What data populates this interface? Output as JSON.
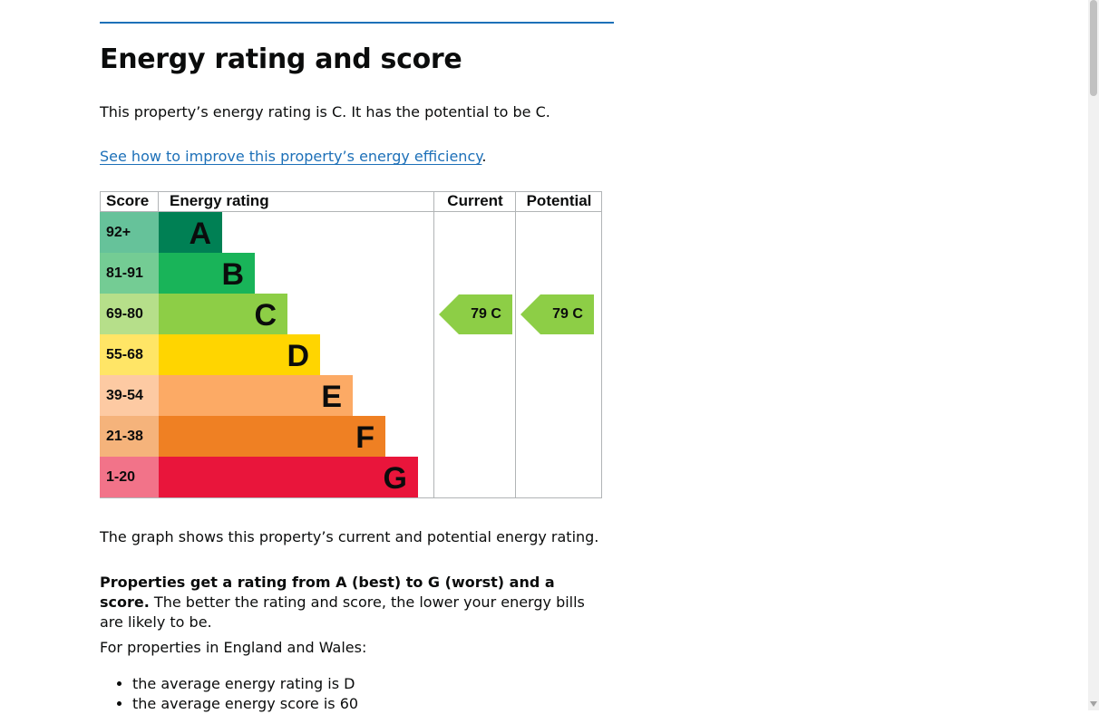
{
  "title": "Energy rating and score",
  "intro": "This property’s energy rating is C. It has the potential to be C.",
  "improve_link": "See how to improve this property’s energy efficiency",
  "improve_link_suffix": ".",
  "chart_data": {
    "type": "table",
    "headers": {
      "score": "Score",
      "rating": "Energy rating",
      "current": "Current",
      "potential": "Potential"
    },
    "bands": [
      {
        "score": "92+",
        "letter": "A",
        "color": "#008054",
        "score_bg": "#66c29a"
      },
      {
        "score": "81-91",
        "letter": "B",
        "color": "#19b459",
        "score_bg": "#74cc94"
      },
      {
        "score": "69-80",
        "letter": "C",
        "color": "#8dce46",
        "score_bg": "#b6df8a"
      },
      {
        "score": "55-68",
        "letter": "D",
        "color": "#ffd500",
        "score_bg": "#ffe566"
      },
      {
        "score": "39-54",
        "letter": "E",
        "color": "#fcaa65",
        "score_bg": "#fdcaa3"
      },
      {
        "score": "21-38",
        "letter": "F",
        "color": "#ef8023",
        "score_bg": "#f5b37b"
      },
      {
        "score": "1-20",
        "letter": "G",
        "color": "#e9153b",
        "score_bg": "#f27389"
      }
    ],
    "current": {
      "score": 79,
      "letter": "C",
      "label": "79  C",
      "color": "#8dce46"
    },
    "potential": {
      "score": 79,
      "letter": "C",
      "label": "79  C",
      "color": "#8dce46"
    }
  },
  "graph_caption": "The graph shows this property’s current and potential energy rating.",
  "rating_bold": "Properties get a rating from A (best) to G (worst) and a score.",
  "rating_rest": " The better the rating and score, the lower your energy bills are likely to be.",
  "england_wales": "For properties in England and Wales:",
  "bullets": [
    "the average energy rating is D",
    "the average energy score is 60"
  ]
}
